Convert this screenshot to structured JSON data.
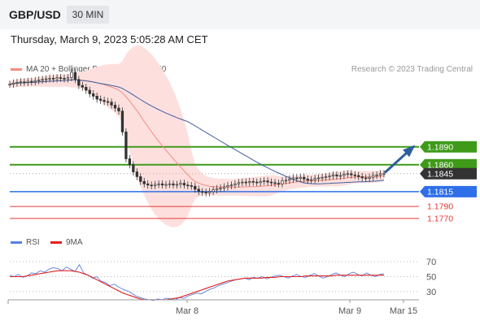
{
  "header": {
    "pair": "GBP/USD",
    "timeframe": "30 MIN",
    "datetime": "Thursday, March 9, 2023 5:05:28 AM CET"
  },
  "legend": {
    "ma20": {
      "label": "MA 20 + Bollinger Bands",
      "color": "#f28b82"
    },
    "ma50": {
      "label": "MA 50",
      "color": "#3f5f9f"
    },
    "credit": "Research © 2023 Trading Central"
  },
  "rsi_legend": {
    "rsi": {
      "label": "RSI",
      "color": "#5b7fe0"
    },
    "ma9": {
      "label": "9MA",
      "color": "#e02020"
    }
  },
  "chart_data": [
    {
      "type": "candlestick",
      "title": "GBP/USD",
      "ylim": [
        1.1748,
        1.2
      ],
      "levels": [
        {
          "value": 1.189,
          "label": "1.1890",
          "kind": "resistance",
          "color": "#3f9a1a"
        },
        {
          "value": 1.186,
          "label": "1.1860",
          "kind": "resistance",
          "color": "#3f9a1a"
        },
        {
          "value": 1.1845,
          "label": "1.1845",
          "kind": "last-price",
          "color": "#333333"
        },
        {
          "value": 1.1815,
          "label": "1.1815",
          "kind": "pivot",
          "color": "#2f6fe8"
        },
        {
          "value": 1.179,
          "label": "1.1790",
          "kind": "support",
          "color": "#e53935"
        },
        {
          "value": 1.177,
          "label": "1.1770",
          "kind": "support",
          "color": "#e53935"
        }
      ],
      "x_ticks": [
        "Mar 8",
        "Mar 9",
        "Mar 15"
      ],
      "series": [
        {
          "name": "MA 20 + Bollinger Bands",
          "color": "#f28b82"
        },
        {
          "name": "MA 50",
          "color": "#3f5f9f"
        }
      ],
      "candles_close": [
        1.1995,
        1.1997,
        1.1998,
        1.1999,
        1.1998,
        1.2,
        1.1999,
        1.2001,
        1.2002,
        1.2003,
        1.2004,
        1.2005,
        1.2004,
        1.2006,
        1.2005,
        1.2004,
        1.2006,
        1.2015,
        1.2003,
        1.1993,
        1.199,
        1.1985,
        1.1979,
        1.1975,
        1.197,
        1.1968,
        1.1966,
        1.1965,
        1.196,
        1.1955,
        1.195,
        1.1915,
        1.187,
        1.186,
        1.1848,
        1.184,
        1.1832,
        1.1828,
        1.1826,
        1.1825,
        1.1827,
        1.1828,
        1.1826,
        1.1827,
        1.1828,
        1.1826,
        1.1827,
        1.1829,
        1.1826,
        1.1825,
        1.1824,
        1.1819,
        1.1815,
        1.1814,
        1.1813,
        1.1815,
        1.1818,
        1.182,
        1.1821,
        1.1823,
        1.1825,
        1.1826,
        1.1828,
        1.183,
        1.1831,
        1.183,
        1.1832,
        1.1831,
        1.183,
        1.1832,
        1.1833,
        1.1831,
        1.183,
        1.1829,
        1.1828,
        1.1833,
        1.1834,
        1.1836,
        1.1838,
        1.1837,
        1.1839,
        1.1836,
        1.1834,
        1.1835,
        1.1837,
        1.1838,
        1.1839,
        1.184,
        1.1841,
        1.1843,
        1.1841,
        1.1842,
        1.1844,
        1.1845,
        1.1843,
        1.1842,
        1.184,
        1.1838,
        1.1837,
        1.1839,
        1.1842,
        1.1843,
        1.1845,
        1.1845
      ],
      "forecast_arrow": {
        "from": 1.1848,
        "to": 1.189
      }
    },
    {
      "type": "line",
      "title": "RSI",
      "ylim": [
        20,
        80
      ],
      "y_ticks": [
        70,
        50,
        30
      ],
      "series": [
        {
          "name": "RSI",
          "color": "#5b7fe0",
          "values": [
            52,
            50,
            53,
            49,
            51,
            55,
            54,
            58,
            56,
            60,
            62,
            61,
            58,
            63,
            60,
            57,
            66,
            55,
            52,
            48,
            50,
            44,
            42,
            38,
            40,
            36,
            33,
            31,
            28,
            24,
            22,
            20,
            19,
            18,
            20,
            19,
            21,
            20,
            19,
            22,
            21,
            24,
            26,
            28,
            27,
            30,
            33,
            35,
            38,
            40,
            42,
            44,
            46,
            47,
            48,
            46,
            49,
            48,
            50,
            47,
            49,
            51,
            52,
            50,
            48,
            51,
            53,
            50,
            49,
            52,
            54,
            51,
            48,
            50,
            53,
            55,
            52,
            50,
            54,
            56,
            53,
            51,
            55,
            52,
            50,
            53,
            54
          ]
        },
        {
          "name": "9MA",
          "color": "#e02020",
          "values": [
            50,
            50,
            50,
            50,
            51,
            52,
            53,
            54,
            55,
            56,
            57,
            58,
            58,
            58,
            58,
            57,
            56,
            54,
            52,
            49,
            46,
            43,
            40,
            37,
            34,
            31,
            28,
            26,
            24,
            22,
            20,
            19,
            19,
            19,
            19,
            19,
            19,
            20,
            21,
            22,
            24,
            26,
            28,
            30,
            32,
            34,
            36,
            38,
            40,
            42,
            44,
            45,
            46,
            47,
            48,
            48,
            48,
            48,
            48,
            49,
            49,
            49,
            50,
            50,
            50,
            50,
            50,
            50,
            51,
            51,
            51,
            51,
            51,
            51,
            51,
            52,
            52,
            52,
            52,
            52,
            52,
            52,
            52,
            52,
            52,
            52,
            52
          ]
        }
      ]
    }
  ]
}
